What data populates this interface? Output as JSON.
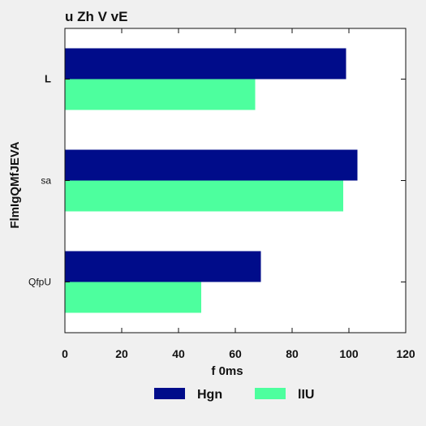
{
  "chart_data": {
    "type": "bar",
    "orientation": "horizontal",
    "title": "u Zh  V vE",
    "xlabel": "f 0ms",
    "ylabel": "FlmIgQMfJEVA",
    "categories": [
      "L",
      "sa",
      "QfpU"
    ],
    "series": [
      {
        "name": "Hgn",
        "values": [
          99,
          103,
          69
        ],
        "color": "#000c8a"
      },
      {
        "name": "lIU",
        "values": [
          67,
          98,
          48
        ],
        "color": "#4dff9e"
      }
    ],
    "xlim": [
      0,
      120
    ],
    "xticks": [
      0,
      20,
      40,
      60,
      80,
      100,
      120
    ],
    "grid": false,
    "legend_position": "bottom"
  }
}
